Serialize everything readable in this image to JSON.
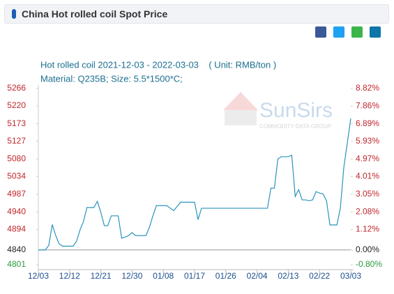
{
  "header": {
    "title": "China Hot rolled coil Spot Price"
  },
  "watermark": {
    "name": "SunSirs",
    "tagline": "COMMODITY DATA GROUP"
  },
  "chart_data": {
    "type": "line",
    "title": "Hot rolled coil 2021-12-03 - 2022-03-03    ( Unit: RMB/ton )",
    "subtitle": "Material: Q235B; Size: 5.5*1500*C;",
    "categories": [
      "12/03",
      null,
      null,
      null,
      null,
      null,
      null,
      null,
      null,
      "12/12",
      null,
      null,
      null,
      null,
      null,
      null,
      null,
      null,
      "12/21",
      null,
      null,
      null,
      null,
      null,
      null,
      null,
      null,
      "12/30",
      null,
      null,
      null,
      null,
      null,
      null,
      null,
      null,
      "01/08",
      null,
      null,
      null,
      null,
      null,
      null,
      null,
      null,
      "01/17",
      null,
      null,
      null,
      null,
      null,
      null,
      null,
      null,
      "01/26",
      null,
      null,
      null,
      null,
      null,
      null,
      null,
      null,
      "02/04",
      null,
      null,
      null,
      null,
      null,
      null,
      null,
      null,
      "02/13",
      null,
      null,
      null,
      null,
      null,
      null,
      null,
      null,
      "02/22",
      null,
      null,
      null,
      null,
      null,
      null,
      null,
      null,
      "03/03"
    ],
    "series": [
      {
        "name": "Hot rolled coil",
        "color": "#2a93bd",
        "values": [
          4840,
          4840,
          4840,
          4852,
          4907,
          4878,
          4856,
          4850,
          4850,
          4850,
          4850,
          4863,
          4893,
          4915,
          4952,
          4952,
          4952,
          4968,
          4939,
          4904,
          4904,
          4930,
          4930,
          4930,
          4871,
          4874,
          4878,
          4886,
          4878,
          4878,
          4878,
          4878,
          4900,
          4930,
          4957,
          4957,
          4957,
          4957,
          4950,
          4944,
          4955,
          4966,
          4966,
          4966,
          4966,
          4966,
          4920,
          4950,
          4950,
          4950,
          4950,
          4950,
          4950,
          4950,
          4950,
          4950,
          4950,
          4950,
          4950,
          4950,
          4950,
          4950,
          4950,
          4950,
          4950,
          4950,
          4950,
          5003,
          5003,
          5080,
          5086,
          5086,
          5086,
          5090,
          4981,
          4999,
          4972,
          4972,
          4970,
          4972,
          4994,
          4990,
          4988,
          4970,
          4906,
          4906,
          4906,
          4950,
          5058,
          5122,
          5187
        ]
      }
    ],
    "ylim": [
      4801,
      5266
    ],
    "yticks": [
      5266,
      5220,
      5173,
      5127,
      5080,
      5034,
      4987,
      4940,
      4894,
      4840,
      4801
    ],
    "y2lim": [
      -0.8,
      8.82
    ],
    "y2ticks": [
      {
        "value": 8.82,
        "label": "8.82%"
      },
      {
        "value": 7.86,
        "label": "7.86%"
      },
      {
        "value": 6.89,
        "label": "6.89%"
      },
      {
        "value": 5.93,
        "label": "5.93%"
      },
      {
        "value": 4.97,
        "label": "4.97%"
      },
      {
        "value": 4.01,
        "label": "4.01%"
      },
      {
        "value": 3.05,
        "label": "3.05%"
      },
      {
        "value": 2.08,
        "label": "2.08%"
      },
      {
        "value": 1.12,
        "label": "1.12%"
      },
      {
        "value": 0,
        "label": "0.00%"
      },
      {
        "value": -0.8,
        "label": "-0.80%"
      }
    ],
    "grid": false
  }
}
